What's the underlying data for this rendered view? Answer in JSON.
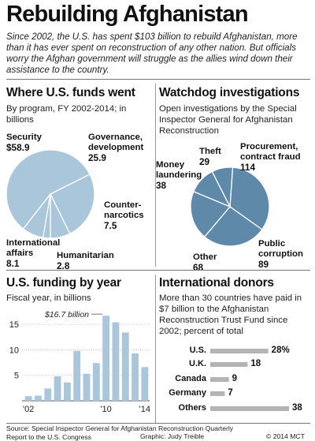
{
  "title": "Rebuilding Afghanistan",
  "intro": "Since 2002, the U.S. has spent $103 billion to rebuild Afghanistan, more than it has ever spent on reconstruction of any other nation. But officials worry the Afghan government will struggle as the allies wind down their assistance to the country.",
  "chart_data": [
    {
      "type": "pie",
      "title": "Where U.S. funds went",
      "subtitle": "By program, FY 2002-2014; in billions",
      "labels": [
        "Security",
        "Governance, development",
        "Counter-narcotics",
        "Humanitarian",
        "International affairs"
      ],
      "values": [
        58.9,
        25.9,
        7.5,
        2.8,
        8.1
      ],
      "value_labels": [
        "$58.9",
        "25.9",
        "7.5",
        "2.8",
        "8.1"
      ],
      "colors": [
        "#aac6db",
        "#aac6db",
        "#aac6db",
        "#aac6db",
        "#aac6db"
      ]
    },
    {
      "type": "pie",
      "title": "Watchdog investigations",
      "subtitle": "Open investigations by the Special Inspector General for Afghanistan Reconstruction",
      "labels": [
        "Procurement, contract fraud",
        "Public corruption",
        "Other",
        "Money laundering",
        "Theft"
      ],
      "values": [
        114,
        89,
        68,
        38,
        29
      ],
      "colors": [
        "#5e89a8",
        "#5e89a8",
        "#5e89a8",
        "#5e89a8",
        "#5e89a8"
      ]
    },
    {
      "type": "bar",
      "title": "U.S. funding by year",
      "subtitle": "Fiscal year, in billions",
      "categories": [
        "'02",
        "'03",
        "'04",
        "'05",
        "'06",
        "'07",
        "'08",
        "'09",
        "'10",
        "'11",
        "'12",
        "'13",
        "'14"
      ],
      "values": [
        0.9,
        1.0,
        2.4,
        4.8,
        3.6,
        9.8,
        5.3,
        7.4,
        16.7,
        15.4,
        13.4,
        9.3,
        6.6
      ],
      "tick_labels": [
        "'02",
        "'10",
        "'14"
      ],
      "y_ticks": [
        5,
        10,
        15
      ],
      "ylim": [
        0,
        17.5
      ],
      "annotation": "$16.7 billion",
      "grid": true,
      "color": "#aac6db"
    },
    {
      "type": "bar",
      "orientation": "horizontal",
      "title": "International donors",
      "subtitle": "More than 30 countries have paid in $7 billion to the Afghanistan Reconstruction Trust Fund since 2002; percent of total",
      "categories": [
        "U.S.",
        "U.K.",
        "Canada",
        "Germany",
        "Others"
      ],
      "values": [
        28,
        18,
        9,
        7,
        38
      ],
      "value_labels": [
        "28%",
        "18",
        "9",
        "7",
        "38"
      ],
      "color": "#b4b4b4"
    }
  ],
  "footer": {
    "source": "Source: Special Inspector General for Afghanistan Reconstruction Quarterly Report to the U.S. Congress",
    "credit": "Graphic: Judy Treible",
    "copyright": "© 2014 MCT"
  }
}
